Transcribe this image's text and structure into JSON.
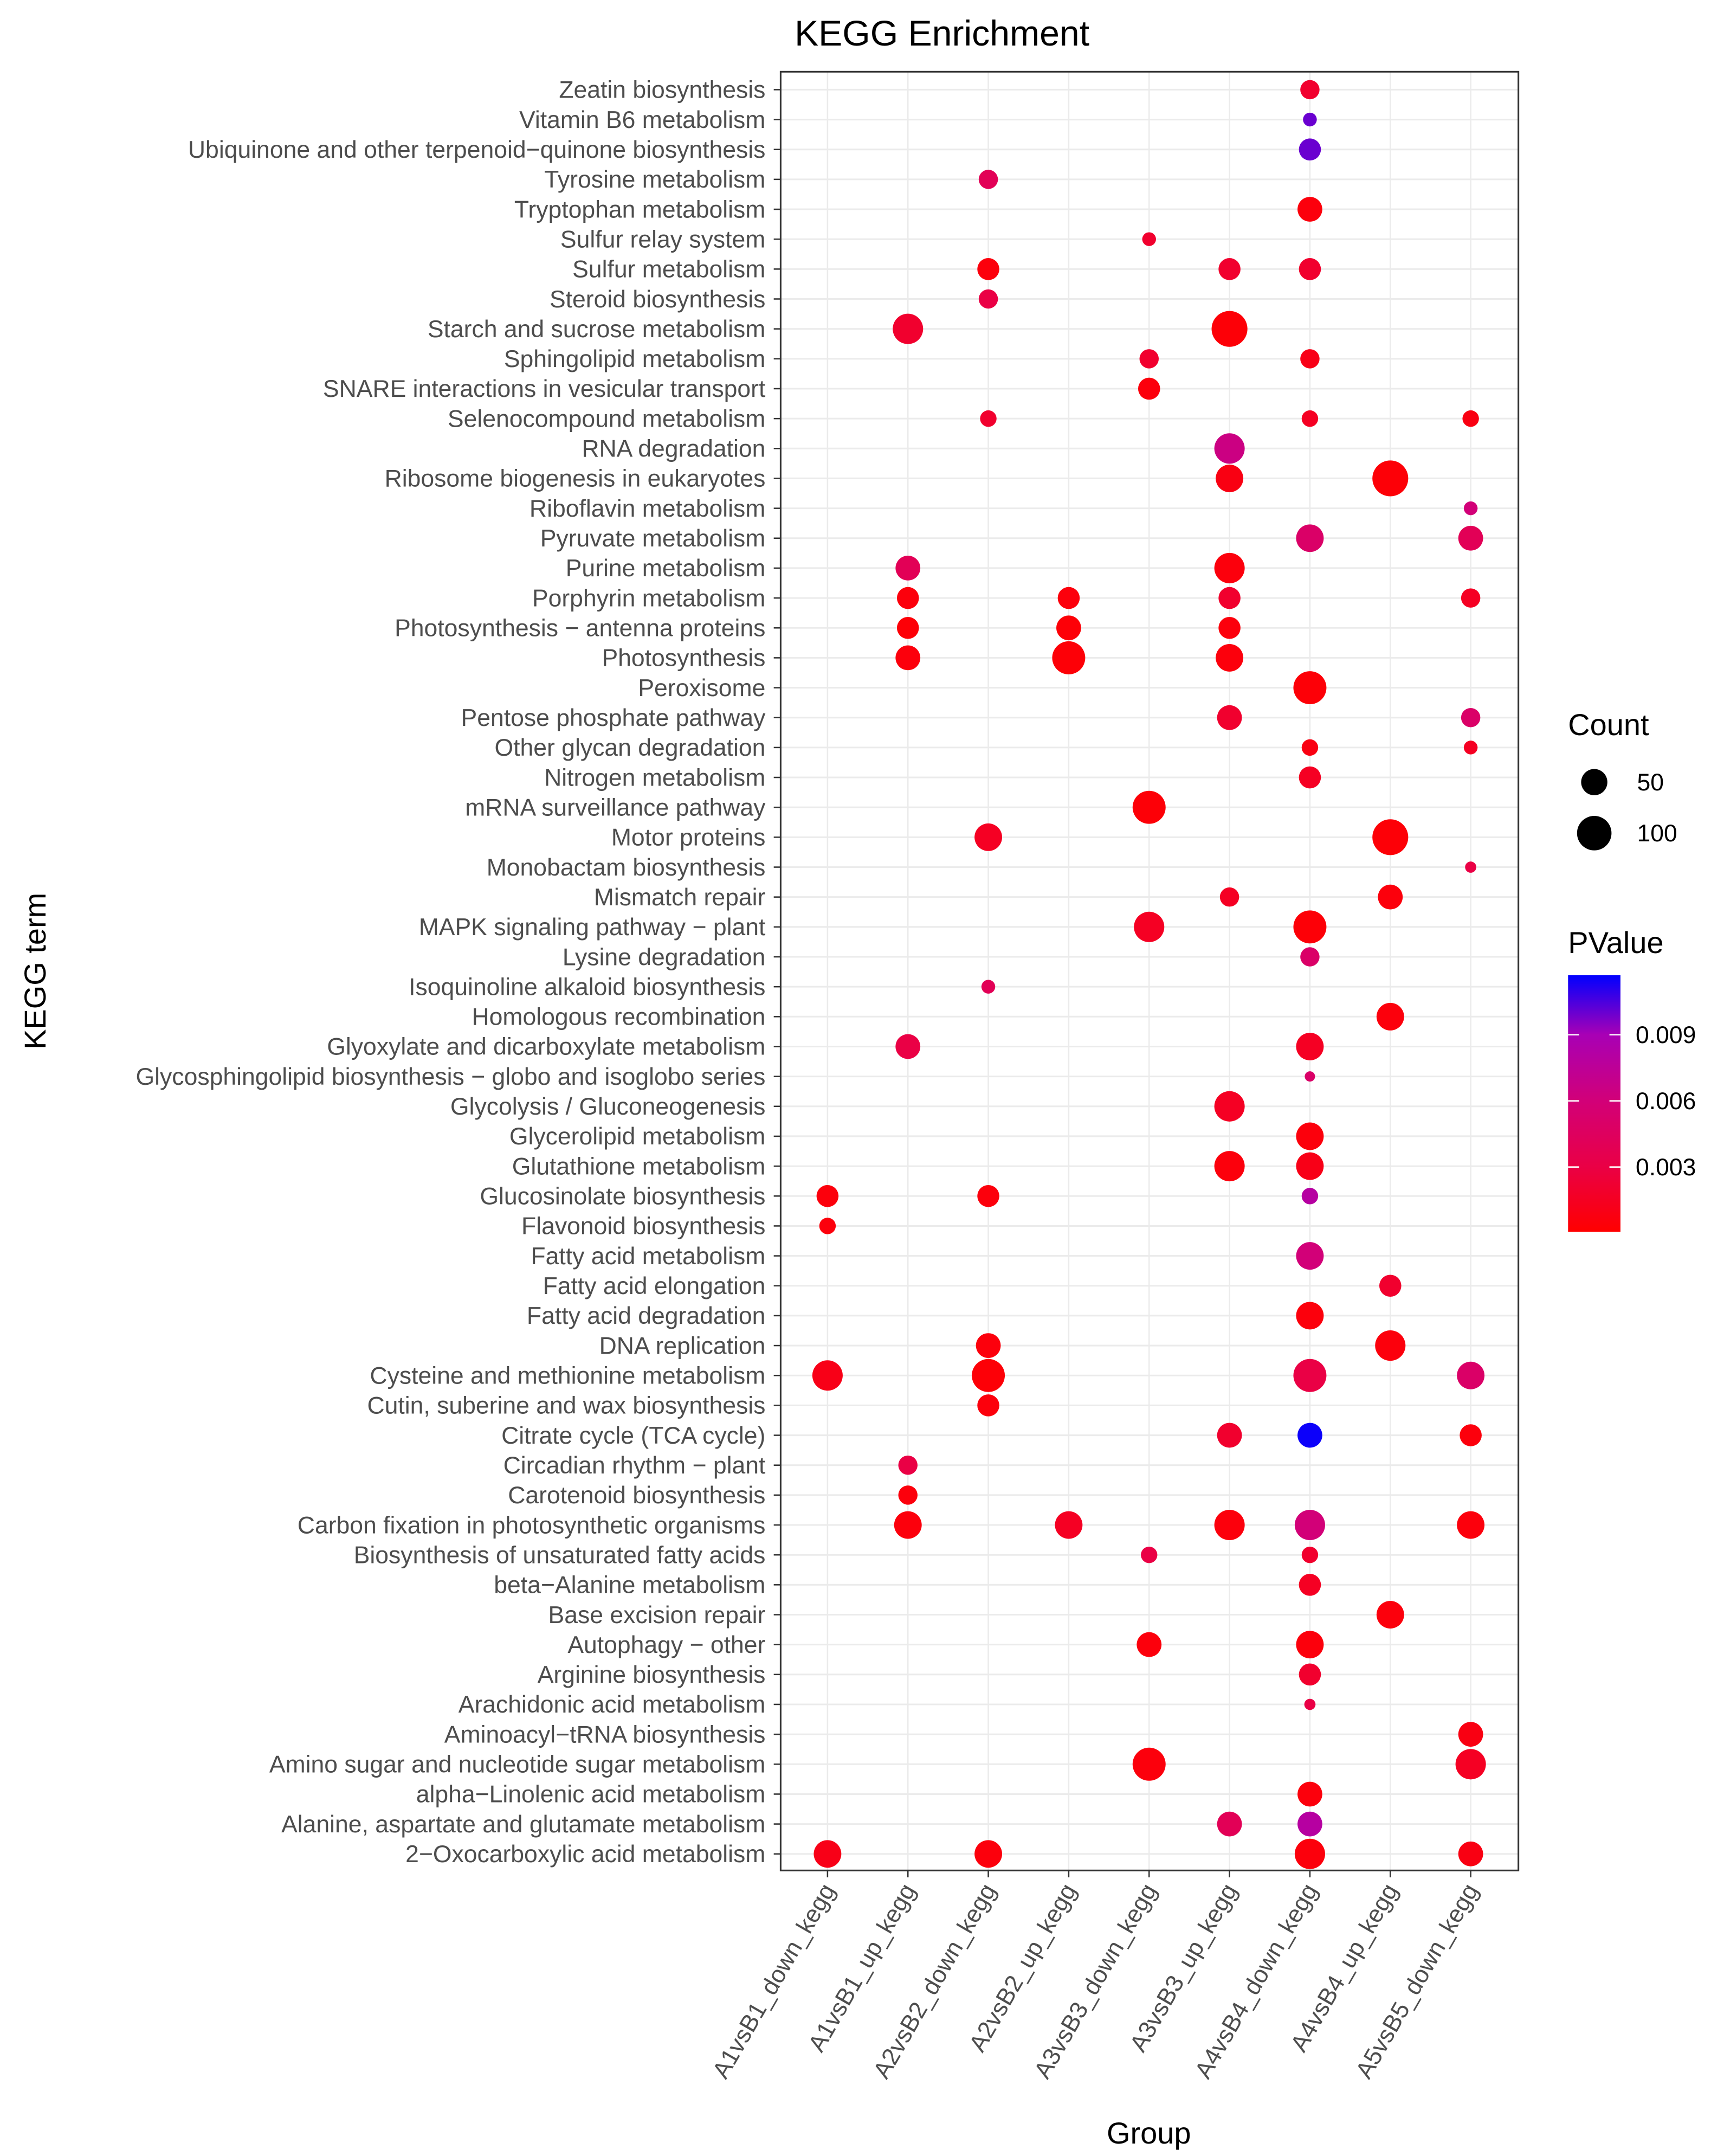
{
  "chart_data": {
    "type": "scatter",
    "subtype": "bubble",
    "title": "KEGG Enrichment",
    "xlabel": "Group",
    "ylabel": "KEGG term",
    "grid": true,
    "legend_position": "right",
    "groups": [
      "A1vsB1_down_kegg",
      "A1vsB1_up_kegg",
      "A2vsB2_down_kegg",
      "A2vsB2_up_kegg",
      "A3vsB3_down_kegg",
      "A3vsB3_up_kegg",
      "A4vsB4_down_kegg",
      "A4vsB4_up_kegg",
      "A5vsB5_down_kegg"
    ],
    "terms_top_to_bottom": [
      "Zeatin biosynthesis",
      "Vitamin B6 metabolism",
      "Ubiquinone and other terpenoid−quinone biosynthesis",
      "Tyrosine metabolism",
      "Tryptophan metabolism",
      "Sulfur relay system",
      "Sulfur metabolism",
      "Steroid biosynthesis",
      "Starch and sucrose metabolism",
      "Sphingolipid metabolism",
      "SNARE interactions in vesicular transport",
      "Selenocompound metabolism",
      "RNA degradation",
      "Ribosome biogenesis in eukaryotes",
      "Riboflavin metabolism",
      "Pyruvate metabolism",
      "Purine metabolism",
      "Porphyrin metabolism",
      "Photosynthesis − antenna proteins",
      "Photosynthesis",
      "Peroxisome",
      "Pentose phosphate pathway",
      "Other glycan degradation",
      "Nitrogen metabolism",
      "mRNA surveillance pathway",
      "Motor proteins",
      "Monobactam biosynthesis",
      "Mismatch repair",
      "MAPK signaling pathway − plant",
      "Lysine degradation",
      "Isoquinoline alkaloid biosynthesis",
      "Homologous recombination",
      "Glyoxylate and dicarboxylate metabolism",
      "Glycosphingolipid biosynthesis − globo and isoglobo series",
      "Glycolysis / Gluconeogenesis",
      "Glycerolipid metabolism",
      "Glutathione metabolism",
      "Glucosinolate biosynthesis",
      "Flavonoid biosynthesis",
      "Fatty acid metabolism",
      "Fatty acid elongation",
      "Fatty acid degradation",
      "DNA replication",
      "Cysteine and methionine metabolism",
      "Cutin, suberine and wax biosynthesis",
      "Citrate cycle (TCA cycle)",
      "Circadian rhythm − plant",
      "Carotenoid biosynthesis",
      "Carbon fixation in photosynthetic organisms",
      "Biosynthesis of unsaturated fatty acids",
      "beta−Alanine metabolism",
      "Base excision repair",
      "Autophagy − other",
      "Arginine biosynthesis",
      "Arachidonic acid metabolism",
      "Aminoacyl−tRNA biosynthesis",
      "Amino sugar and nucleotide sugar metabolism",
      "alpha−Linolenic acid metabolism",
      "Alanine, aspartate and glutamate metabolism",
      "2−Oxocarboxylic acid metabolism"
    ],
    "point_fields": [
      "term_index",
      "group_index",
      "count",
      "pvalue"
    ],
    "points": [
      [
        0,
        6,
        21,
        0.002
      ],
      [
        1,
        6,
        7,
        0.01
      ],
      [
        2,
        6,
        31,
        0.01
      ],
      [
        3,
        2,
        21,
        0.004
      ],
      [
        4,
        6,
        43,
        0.0005
      ],
      [
        5,
        4,
        7,
        0.002
      ],
      [
        6,
        2,
        31,
        0.0005
      ],
      [
        6,
        5,
        31,
        0.002
      ],
      [
        6,
        6,
        31,
        0.002
      ],
      [
        7,
        2,
        21,
        0.003
      ],
      [
        8,
        1,
        73,
        0.002
      ],
      [
        8,
        5,
        110,
        0.0003
      ],
      [
        9,
        4,
        21,
        0.002
      ],
      [
        9,
        6,
        21,
        0.001
      ],
      [
        10,
        4,
        31,
        0.0005
      ],
      [
        11,
        2,
        13,
        0.002
      ],
      [
        11,
        6,
        13,
        0.0015
      ],
      [
        11,
        8,
        13,
        0.0008
      ],
      [
        12,
        5,
        73,
        0.0065
      ],
      [
        13,
        5,
        57,
        0.0008
      ],
      [
        13,
        7,
        110,
        0.0003
      ],
      [
        14,
        8,
        7,
        0.006
      ],
      [
        15,
        6,
        57,
        0.005
      ],
      [
        15,
        8,
        43,
        0.004
      ],
      [
        16,
        1,
        43,
        0.004
      ],
      [
        16,
        5,
        73,
        0.0005
      ],
      [
        17,
        1,
        31,
        0.0005
      ],
      [
        17,
        3,
        31,
        0.0005
      ],
      [
        17,
        5,
        31,
        0.002
      ],
      [
        17,
        8,
        21,
        0.0015
      ],
      [
        18,
        1,
        31,
        0.0003
      ],
      [
        18,
        3,
        43,
        0.0003
      ],
      [
        18,
        5,
        31,
        0.0005
      ],
      [
        19,
        1,
        43,
        0.0005
      ],
      [
        19,
        3,
        90,
        0.0003
      ],
      [
        19,
        5,
        57,
        0.0005
      ],
      [
        20,
        6,
        90,
        0.0003
      ],
      [
        21,
        5,
        43,
        0.002
      ],
      [
        21,
        8,
        21,
        0.005
      ],
      [
        22,
        6,
        13,
        0.0008
      ],
      [
        22,
        8,
        7,
        0.0015
      ],
      [
        23,
        6,
        31,
        0.0015
      ],
      [
        24,
        4,
        90,
        0.0003
      ],
      [
        25,
        2,
        57,
        0.0015
      ],
      [
        25,
        7,
        110,
        0.0003
      ],
      [
        26,
        8,
        3,
        0.003
      ],
      [
        27,
        5,
        21,
        0.0015
      ],
      [
        27,
        7,
        43,
        0.0005
      ],
      [
        28,
        4,
        73,
        0.0015
      ],
      [
        28,
        6,
        90,
        0.0003
      ],
      [
        29,
        6,
        21,
        0.005
      ],
      [
        30,
        2,
        7,
        0.004
      ],
      [
        31,
        7,
        57,
        0.0005
      ],
      [
        32,
        1,
        43,
        0.003
      ],
      [
        32,
        6,
        57,
        0.0015
      ],
      [
        33,
        6,
        2,
        0.005
      ],
      [
        34,
        5,
        73,
        0.0015
      ],
      [
        35,
        6,
        57,
        0.0005
      ],
      [
        36,
        5,
        73,
        0.0005
      ],
      [
        36,
        6,
        57,
        0.001
      ],
      [
        37,
        0,
        31,
        0.0005
      ],
      [
        37,
        2,
        31,
        0.0005
      ],
      [
        37,
        6,
        13,
        0.008
      ],
      [
        38,
        0,
        13,
        0.0005
      ],
      [
        39,
        6,
        57,
        0.006
      ],
      [
        40,
        7,
        31,
        0.002
      ],
      [
        41,
        6,
        57,
        0.0005
      ],
      [
        42,
        2,
        43,
        0.0005
      ],
      [
        42,
        7,
        73,
        0.0005
      ],
      [
        43,
        0,
        73,
        0.001
      ],
      [
        43,
        2,
        90,
        0.0003
      ],
      [
        43,
        6,
        90,
        0.003
      ],
      [
        43,
        8,
        57,
        0.005
      ],
      [
        44,
        2,
        31,
        0.0005
      ],
      [
        45,
        5,
        43,
        0.002
      ],
      [
        45,
        6,
        43,
        0.0115
      ],
      [
        45,
        8,
        31,
        0.0005
      ],
      [
        46,
        1,
        21,
        0.003
      ],
      [
        47,
        1,
        21,
        0.0005
      ],
      [
        48,
        1,
        57,
        0.0005
      ],
      [
        48,
        3,
        57,
        0.0015
      ],
      [
        48,
        5,
        73,
        0.0005
      ],
      [
        48,
        6,
        73,
        0.006
      ],
      [
        48,
        8,
        57,
        0.0005
      ],
      [
        49,
        4,
        13,
        0.003
      ],
      [
        49,
        6,
        13,
        0.002
      ],
      [
        50,
        6,
        31,
        0.0015
      ],
      [
        51,
        7,
        57,
        0.0005
      ],
      [
        52,
        4,
        43,
        0.0005
      ],
      [
        52,
        6,
        57,
        0.0005
      ],
      [
        53,
        6,
        31,
        0.002
      ],
      [
        54,
        6,
        3,
        0.003
      ],
      [
        55,
        8,
        43,
        0.0008
      ],
      [
        56,
        4,
        90,
        0.0005
      ],
      [
        56,
        8,
        73,
        0.0015
      ],
      [
        57,
        6,
        43,
        0.0005
      ],
      [
        58,
        5,
        43,
        0.004
      ],
      [
        58,
        6,
        43,
        0.008
      ],
      [
        59,
        0,
        57,
        0.001
      ],
      [
        59,
        2,
        57,
        0.0005
      ],
      [
        59,
        6,
        73,
        0.0005
      ],
      [
        59,
        8,
        43,
        0.0008
      ]
    ],
    "size_legend": {
      "title": "Count",
      "breaks": [
        50,
        100
      ],
      "labels": [
        "50",
        "100"
      ]
    },
    "color_legend": {
      "title": "PValue",
      "breaks": [
        0.003,
        0.006,
        0.009
      ],
      "labels": [
        "0.003",
        "0.006",
        "0.009"
      ],
      "range": [
        6e-05,
        0.0117
      ],
      "low_color": "#FF0000",
      "high_color": "#0000FF",
      "stops": [
        [
          0,
          "#FF0000"
        ],
        [
          0.003,
          "#EA0045"
        ],
        [
          0.006,
          "#D20078"
        ],
        [
          0.009,
          "#A800B5"
        ],
        [
          0.0117,
          "#0000FF"
        ]
      ]
    }
  }
}
